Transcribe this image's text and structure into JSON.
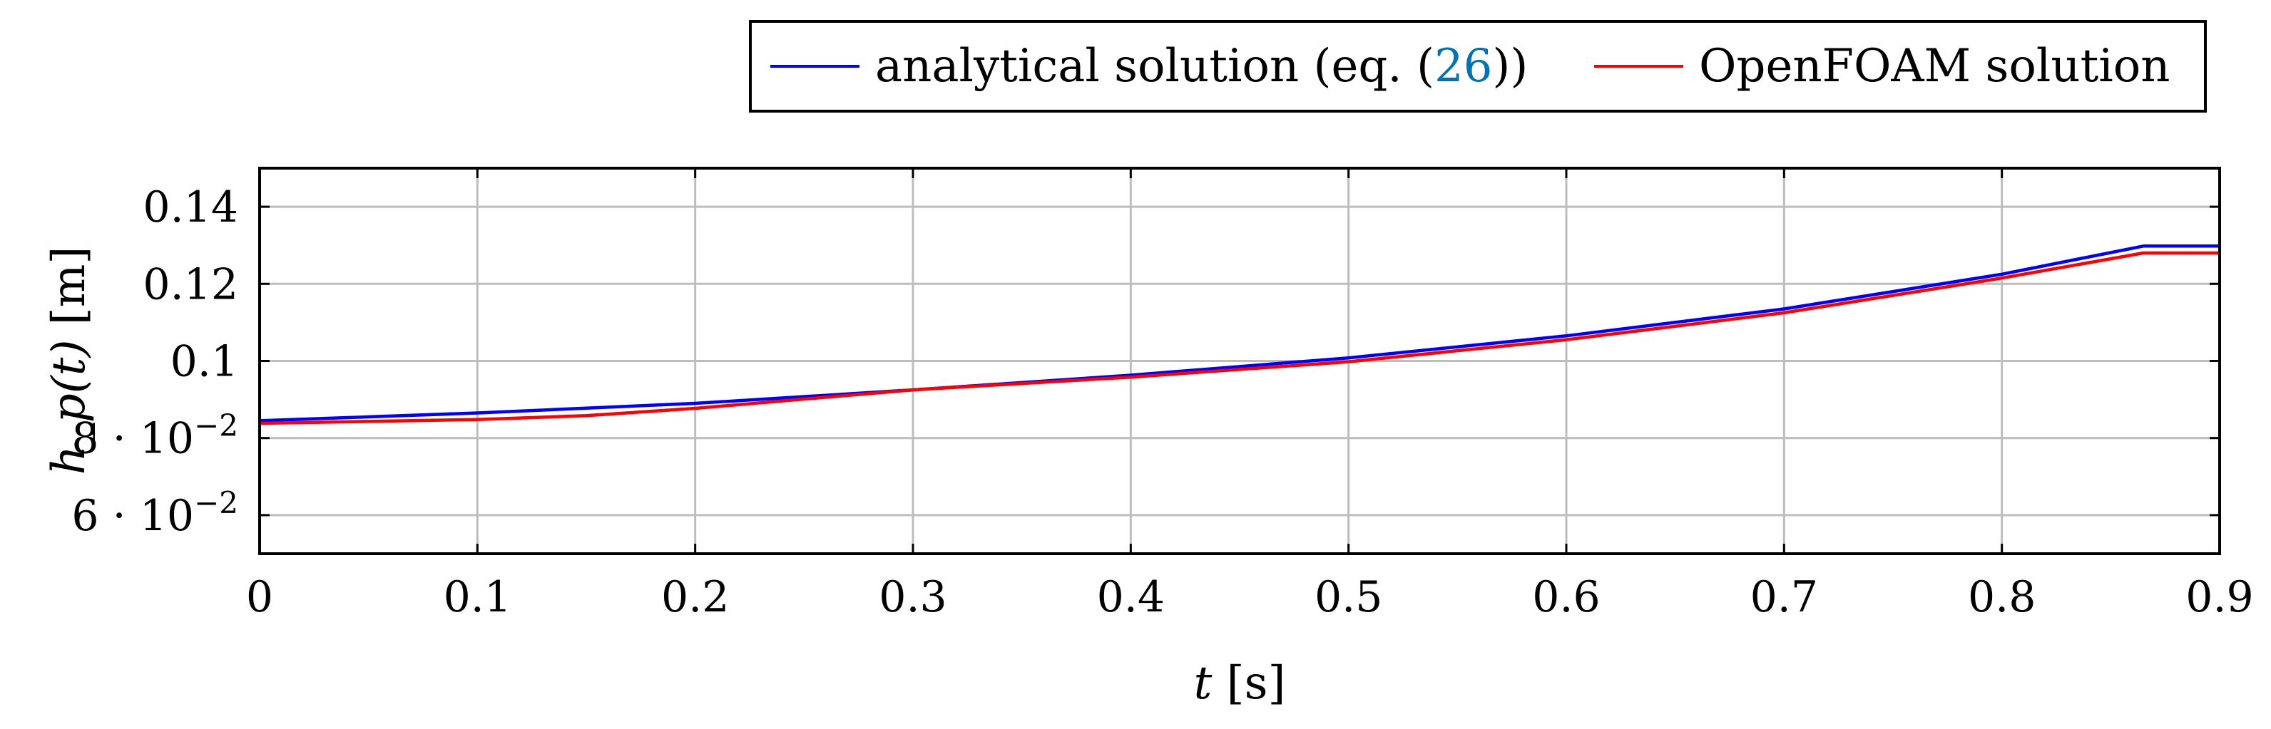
{
  "chart_data": {
    "type": "line",
    "title": "",
    "xlabel": {
      "var": "t",
      "unit": " [s]"
    },
    "ylabel": {
      "var": "h_p(t)",
      "unit": " [m]"
    },
    "xlim": [
      0,
      0.9
    ],
    "ylim": [
      0.05,
      0.15
    ],
    "grid": true,
    "legend": "top-right, outside above plot",
    "x_ticks": [
      {
        "value": 0,
        "label": "0"
      },
      {
        "value": 0.1,
        "label": "0.1"
      },
      {
        "value": 0.2,
        "label": "0.2"
      },
      {
        "value": 0.3,
        "label": "0.3"
      },
      {
        "value": 0.4,
        "label": "0.4"
      },
      {
        "value": 0.5,
        "label": "0.5"
      },
      {
        "value": 0.6,
        "label": "0.6"
      },
      {
        "value": 0.7,
        "label": "0.7"
      },
      {
        "value": 0.8,
        "label": "0.8"
      },
      {
        "value": 0.9,
        "label": "0.9"
      }
    ],
    "y_ticks": [
      {
        "value": 0.06,
        "label": "6 · 10",
        "exp": "−2"
      },
      {
        "value": 0.08,
        "label": "8 · 10",
        "exp": "−2"
      },
      {
        "value": 0.1,
        "label": "0.1",
        "exp": ""
      },
      {
        "value": 0.12,
        "label": "0.12",
        "exp": ""
      },
      {
        "value": 0.14,
        "label": "0.14",
        "exp": ""
      }
    ],
    "series": [
      {
        "name": "analytical solution (eq. (26))",
        "name_parts": [
          "analytical solution (eq. (",
          "26",
          "))"
        ],
        "color": "#0000ff",
        "x": [
          0,
          0.1,
          0.2,
          0.3,
          0.4,
          0.5,
          0.6,
          0.7,
          0.8,
          0.865,
          0.9
        ],
        "y": [
          0.0845,
          0.0865,
          0.089,
          0.0925,
          0.0963,
          0.1008,
          0.1065,
          0.1135,
          0.1225,
          0.1298,
          0.1298
        ]
      },
      {
        "name": "OpenFOAM solution",
        "color": "#ff0000",
        "x": [
          0,
          0.1,
          0.15,
          0.2,
          0.3,
          0.4,
          0.5,
          0.6,
          0.7,
          0.8,
          0.865,
          0.9
        ],
        "y": [
          0.0838,
          0.0848,
          0.0858,
          0.0877,
          0.0925,
          0.0958,
          0.0998,
          0.1055,
          0.1125,
          0.1215,
          0.128,
          0.128
        ]
      }
    ],
    "link_color": "#0073b8"
  }
}
